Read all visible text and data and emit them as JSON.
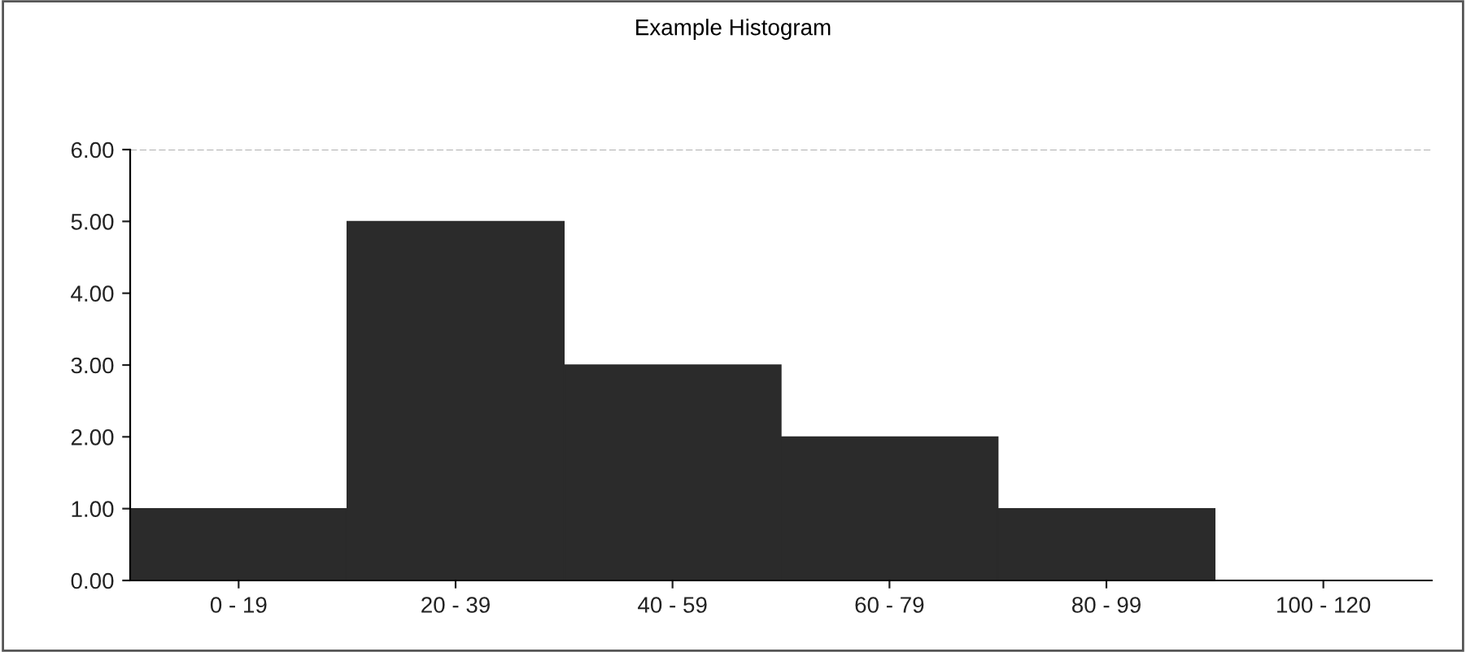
{
  "chart_data": {
    "type": "bar",
    "title": "Example Histogram",
    "categories": [
      "0 - 19",
      "20 - 39",
      "40 - 59",
      "60 - 79",
      "80 - 99",
      "100 - 120"
    ],
    "values": [
      1,
      5,
      3,
      2,
      1,
      0
    ],
    "color": "#2b2b2b",
    "ylim": [
      0,
      6
    ],
    "yticks": [
      {
        "value": 0,
        "label": "0.00"
      },
      {
        "value": 1,
        "label": "1.00"
      },
      {
        "value": 2,
        "label": "2.00"
      },
      {
        "value": 3,
        "label": "3.00"
      },
      {
        "value": 4,
        "label": "4.00"
      },
      {
        "value": 5,
        "label": "5.00"
      },
      {
        "value": 6,
        "label": "6.00"
      }
    ],
    "ref_lines": [
      {
        "axis": "y",
        "value": 6,
        "color": "#b0b0b0",
        "line_style": "dashed"
      }
    ],
    "grid": false,
    "legend": false
  }
}
